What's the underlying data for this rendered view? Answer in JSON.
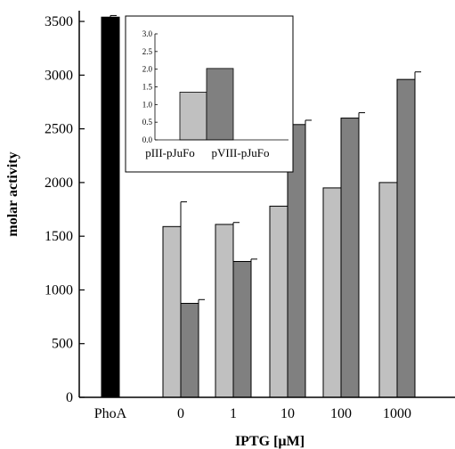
{
  "chart_data": {
    "main": {
      "type": "bar",
      "xlabel": "IPTG [µM]",
      "ylabel": "molar activity",
      "ylim": [
        0,
        3600
      ],
      "yticks": [
        0,
        500,
        1000,
        1500,
        2000,
        2500,
        3000,
        3500
      ],
      "categories": [
        "PhoA",
        "0",
        "1",
        "10",
        "100",
        "1000"
      ],
      "groups": [
        {
          "category": "PhoA",
          "bars": [
            {
              "value": 3540,
              "error": 15,
              "color": "#000000"
            }
          ]
        },
        {
          "category": "0",
          "bars": [
            {
              "value": 1590,
              "error": 230,
              "color": "#c0c0c0"
            },
            {
              "value": 875,
              "error": 35,
              "color": "#808080"
            }
          ]
        },
        {
          "category": "1",
          "bars": [
            {
              "value": 1610,
              "error": 18,
              "color": "#c0c0c0"
            },
            {
              "value": 1265,
              "error": 22,
              "color": "#808080"
            }
          ]
        },
        {
          "category": "10",
          "bars": [
            {
              "value": 1780,
              "error": 90,
              "color": "#c0c0c0"
            },
            {
              "value": 2540,
              "error": 40,
              "color": "#808080"
            }
          ]
        },
        {
          "category": "100",
          "bars": [
            {
              "value": 1950,
              "error": 35,
              "color": "#c0c0c0"
            },
            {
              "value": 2600,
              "error": 50,
              "color": "#808080"
            }
          ]
        },
        {
          "category": "1000",
          "bars": [
            {
              "value": 2000,
              "error": 75,
              "color": "#c0c0c0"
            },
            {
              "value": 2960,
              "error": 70,
              "color": "#808080"
            }
          ]
        }
      ]
    },
    "inset": {
      "type": "bar",
      "ylim": [
        0,
        3.0
      ],
      "yticks": [
        "0.0",
        "0.5",
        "1.0",
        "1.5",
        "2.0",
        "2.5",
        "3.0"
      ],
      "categories": [
        "pIII-pJuFo",
        "pVIII-pJuFo"
      ],
      "values": [
        1.35,
        2.02
      ],
      "colors": [
        "#c0c0c0",
        "#808080"
      ]
    }
  }
}
